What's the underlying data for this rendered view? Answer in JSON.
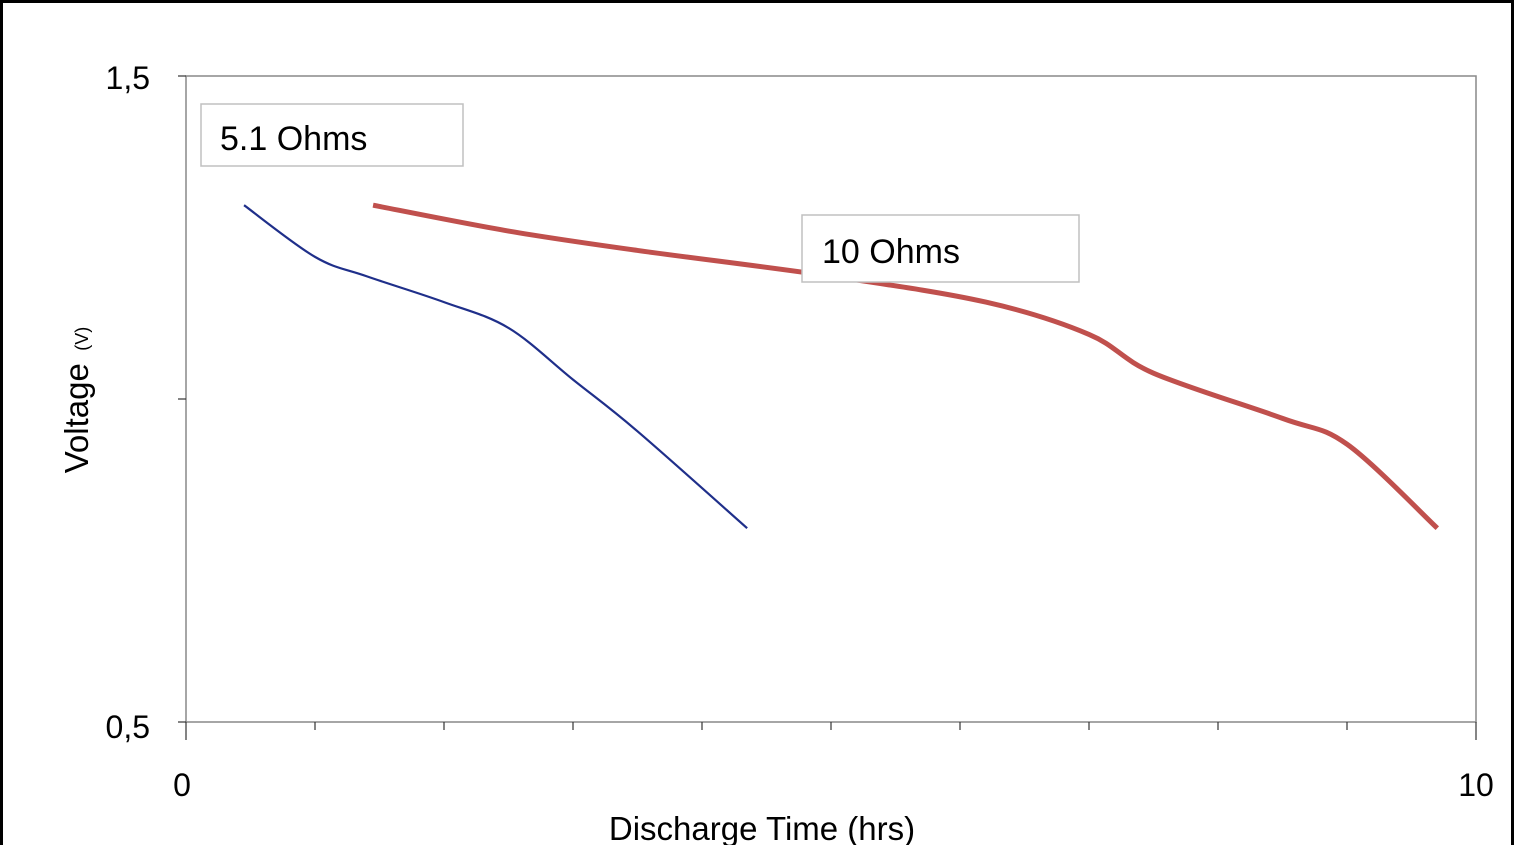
{
  "chart_data": {
    "type": "line",
    "title": "",
    "xlabel": "Discharge Time (hrs)",
    "ylabel": "Voltage",
    "ylabel_unit": "(V)",
    "xlim": [
      0,
      10
    ],
    "ylim": [
      0.5,
      1.5
    ],
    "x_tick_labels": [
      "0",
      "10"
    ],
    "y_tick_labels": [
      "0,5",
      "1,5"
    ],
    "x_minor_ticks": [
      1,
      2,
      3,
      4,
      5,
      6,
      7,
      8,
      9
    ],
    "y_minor_ticks": [
      1.0
    ],
    "grid": false,
    "series": [
      {
        "name": "5.1 Ohms",
        "color": "#1f2f8a",
        "points": [
          [
            0.45,
            1.3
          ],
          [
            1.0,
            1.22
          ],
          [
            1.4,
            1.19
          ],
          [
            2.0,
            1.15
          ],
          [
            2.5,
            1.11
          ],
          [
            3.0,
            1.03
          ],
          [
            3.5,
            0.95
          ],
          [
            4.35,
            0.8
          ]
        ]
      },
      {
        "name": "10 Ohms",
        "color": "#c0504d",
        "points": [
          [
            1.45,
            1.3
          ],
          [
            2.5,
            1.26
          ],
          [
            3.5,
            1.23
          ],
          [
            5.0,
            1.19
          ],
          [
            6.2,
            1.15
          ],
          [
            7.0,
            1.1
          ],
          [
            7.5,
            1.04
          ],
          [
            8.5,
            0.97
          ],
          [
            9.0,
            0.93
          ],
          [
            9.7,
            0.8
          ]
        ]
      }
    ],
    "annotations": [
      {
        "text": "5.1 Ohms",
        "series": "5.1 Ohms"
      },
      {
        "text": "10 Ohms",
        "series": "10 Ohms"
      }
    ]
  }
}
